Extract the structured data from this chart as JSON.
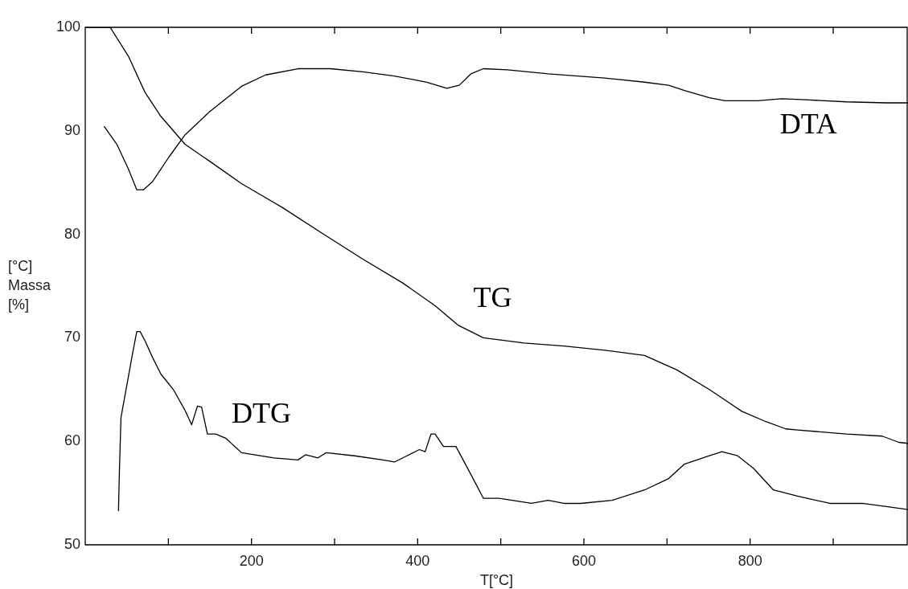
{
  "chart_data": {
    "type": "line",
    "xlabel": "T[°C]",
    "ylabel": "[°C]\nMassa\n[%]",
    "xlim": [
      0,
      990
    ],
    "ylim": [
      50,
      100
    ],
    "xticks": [
      {
        "value": 100,
        "label": null
      },
      200,
      {
        "value": 300,
        "label": null
      },
      400,
      {
        "value": 500,
        "label": null
      },
      600,
      {
        "value": 700,
        "label": null
      },
      800,
      {
        "value": 900,
        "label": null
      }
    ],
    "yticks": [
      50,
      60,
      70,
      80,
      90,
      100
    ],
    "grid": false,
    "legend": false,
    "marker": "none",
    "line_style": "solid",
    "series": [
      {
        "name": "TG",
        "color": "#000000",
        "x": [
          0,
          30,
          52,
          72,
          91,
          120,
          149,
          188,
          237,
          285,
          334,
          382,
          421,
          449,
          479,
          528,
          576,
          625,
          673,
          712,
          751,
          790,
          819,
          843,
          857,
          916,
          959,
          979,
          990
        ],
        "values": [
          100,
          100,
          97.2,
          93.7,
          91.4,
          88.7,
          87.1,
          84.9,
          82.6,
          80.1,
          77.6,
          75.3,
          73.1,
          71.2,
          70.0,
          69.5,
          69.2,
          68.8,
          68.3,
          66.9,
          65.0,
          62.9,
          61.9,
          61.2,
          61.1,
          60.7,
          60.5,
          59.9,
          59.8
        ]
      },
      {
        "name": "DTA",
        "color": "#000000",
        "x": [
          23,
          38,
          52,
          62,
          70,
          81,
          101,
          120,
          149,
          188,
          217,
          256,
          295,
          334,
          372,
          411,
          435,
          450,
          464,
          479,
          508,
          557,
          625,
          673,
          702,
          721,
          751,
          770,
          809,
          838,
          867,
          916,
          964,
          990
        ],
        "values": [
          90.4,
          88.7,
          86.3,
          84.3,
          84.3,
          85.1,
          87.5,
          89.6,
          91.8,
          94.3,
          95.4,
          96.0,
          96.0,
          95.7,
          95.3,
          94.7,
          94.1,
          94.4,
          95.5,
          96.0,
          95.9,
          95.5,
          95.1,
          94.7,
          94.4,
          93.9,
          93.2,
          92.9,
          92.9,
          93.1,
          93.0,
          92.8,
          92.7,
          92.7
        ]
      },
      {
        "name": "DTG",
        "color": "#000000",
        "x": [
          40,
          41,
          43,
          50,
          57,
          62,
          66,
          72,
          81,
          91,
          106,
          120,
          128,
          135,
          140,
          147,
          157,
          169,
          188,
          227,
          256,
          265,
          280,
          290,
          324,
          358,
          372,
          387,
          402,
          409,
          416,
          421,
          431,
          446,
          464,
          479,
          498,
          537,
          557,
          576,
          596,
          634,
          673,
          702,
          721,
          751,
          766,
          785,
          804,
          828,
          857,
          896,
          935,
          964,
          990
        ],
        "values": [
          53.3,
          56.8,
          62.3,
          65.4,
          68.5,
          70.6,
          70.6,
          69.7,
          68.1,
          66.5,
          65.0,
          63.0,
          61.6,
          63.4,
          63.3,
          60.7,
          60.7,
          60.3,
          58.9,
          58.4,
          58.2,
          58.7,
          58.4,
          58.9,
          58.6,
          58.2,
          58.0,
          58.6,
          59.2,
          59.0,
          60.7,
          60.7,
          59.5,
          59.5,
          56.8,
          54.5,
          54.5,
          54.0,
          54.3,
          54.0,
          54.0,
          54.3,
          55.3,
          56.4,
          57.8,
          58.6,
          59.0,
          58.6,
          57.4,
          55.3,
          54.7,
          54.0,
          54.0,
          53.7,
          53.4
        ]
      }
    ]
  }
}
